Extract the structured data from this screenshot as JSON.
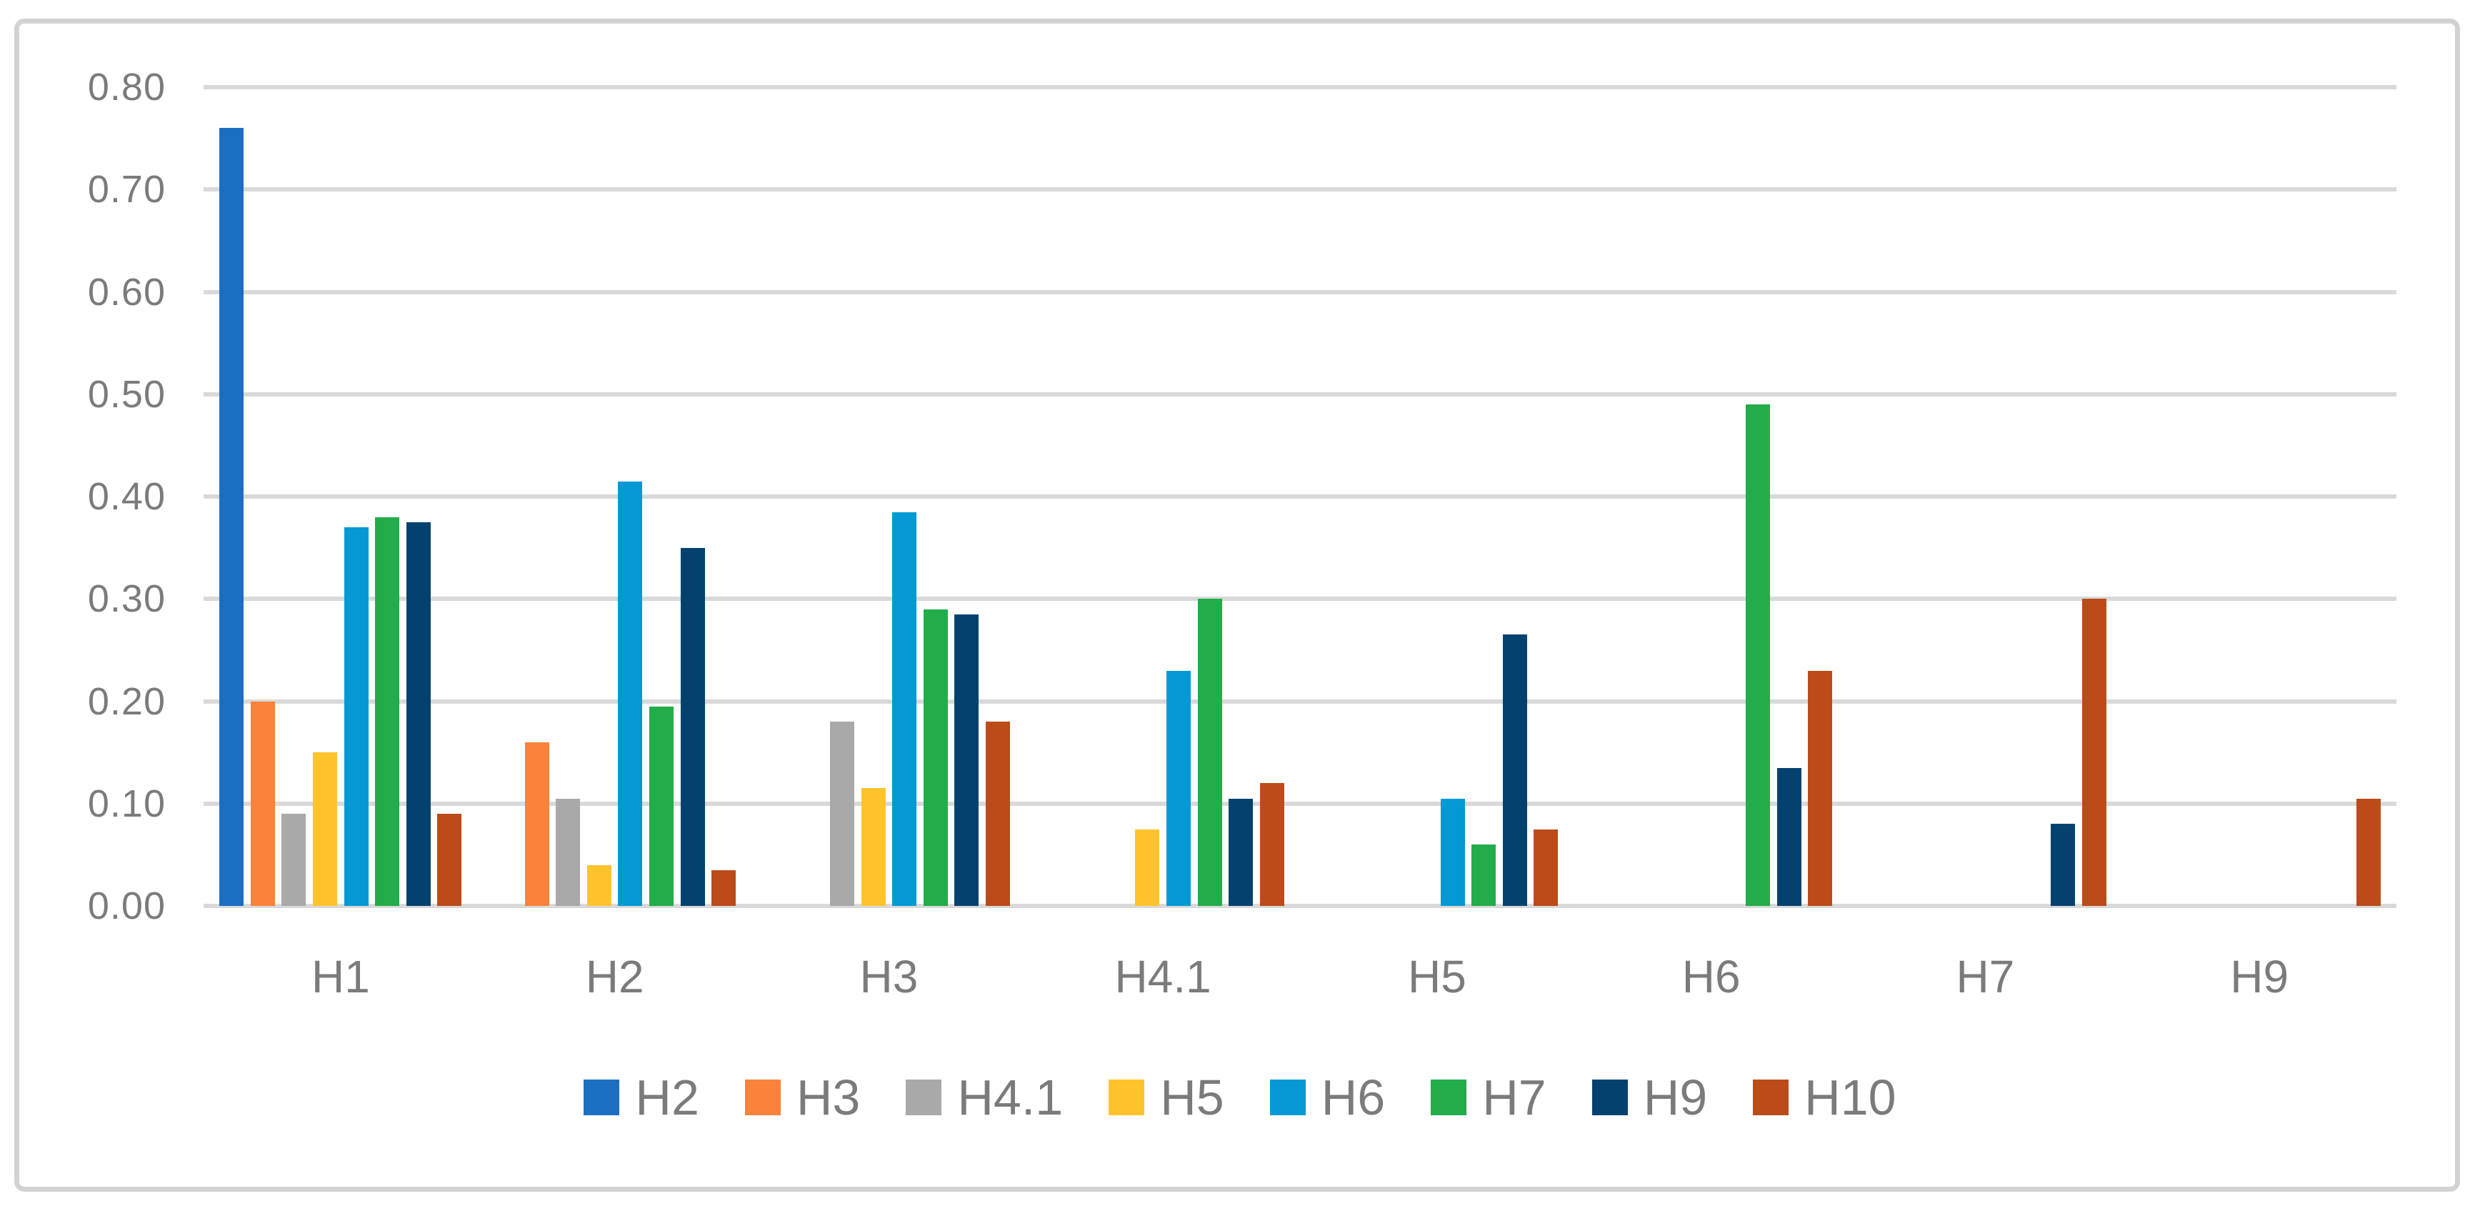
{
  "chart_data": {
    "type": "bar",
    "title": "",
    "categories": [
      "H1",
      "H2",
      "H3",
      "H4.1",
      "H5",
      "H6",
      "H7",
      "H9"
    ],
    "series": [
      {
        "name": "H2",
        "color": "#1B6FC3",
        "values": [
          0.76,
          0,
          0,
          0,
          0,
          0,
          0,
          0
        ]
      },
      {
        "name": "H3",
        "color": "#FB823B",
        "values": [
          0.2,
          0.16,
          0,
          0,
          0,
          0,
          0,
          0
        ]
      },
      {
        "name": "H4.1",
        "color": "#A9A9A9",
        "values": [
          0.09,
          0.105,
          0.18,
          0,
          0,
          0,
          0,
          0
        ]
      },
      {
        "name": "H5",
        "color": "#FFC32B",
        "values": [
          0.15,
          0.04,
          0.115,
          0.075,
          0,
          0,
          0,
          0
        ]
      },
      {
        "name": "H6",
        "color": "#0499D4",
        "values": [
          0.37,
          0.415,
          0.385,
          0.23,
          0.105,
          0,
          0,
          0
        ]
      },
      {
        "name": "H7",
        "color": "#22AC4A",
        "values": [
          0.38,
          0.195,
          0.29,
          0.3,
          0.06,
          0.49,
          0,
          0
        ]
      },
      {
        "name": "H9",
        "color": "#03426F",
        "values": [
          0.375,
          0.35,
          0.285,
          0.105,
          0.265,
          0.135,
          0.08,
          0
        ]
      },
      {
        "name": "H10",
        "color": "#BB4B19",
        "values": [
          0.09,
          0.035,
          0.18,
          0.12,
          0.075,
          0.23,
          0.3,
          0.105
        ]
      }
    ],
    "ylim": [
      0,
      0.8
    ],
    "ytick_step": 0.1,
    "ytick_labels": [
      "0.00",
      "0.10",
      "0.20",
      "0.30",
      "0.40",
      "0.50",
      "0.60",
      "0.70",
      "0.80"
    ],
    "grid": true,
    "legend_position": "bottom",
    "styles": {
      "gridline_color": "#D9D9D9",
      "axis_text_color": "#7b7b7b",
      "border_color": "#D2D2D2",
      "background": "#ffffff"
    }
  }
}
